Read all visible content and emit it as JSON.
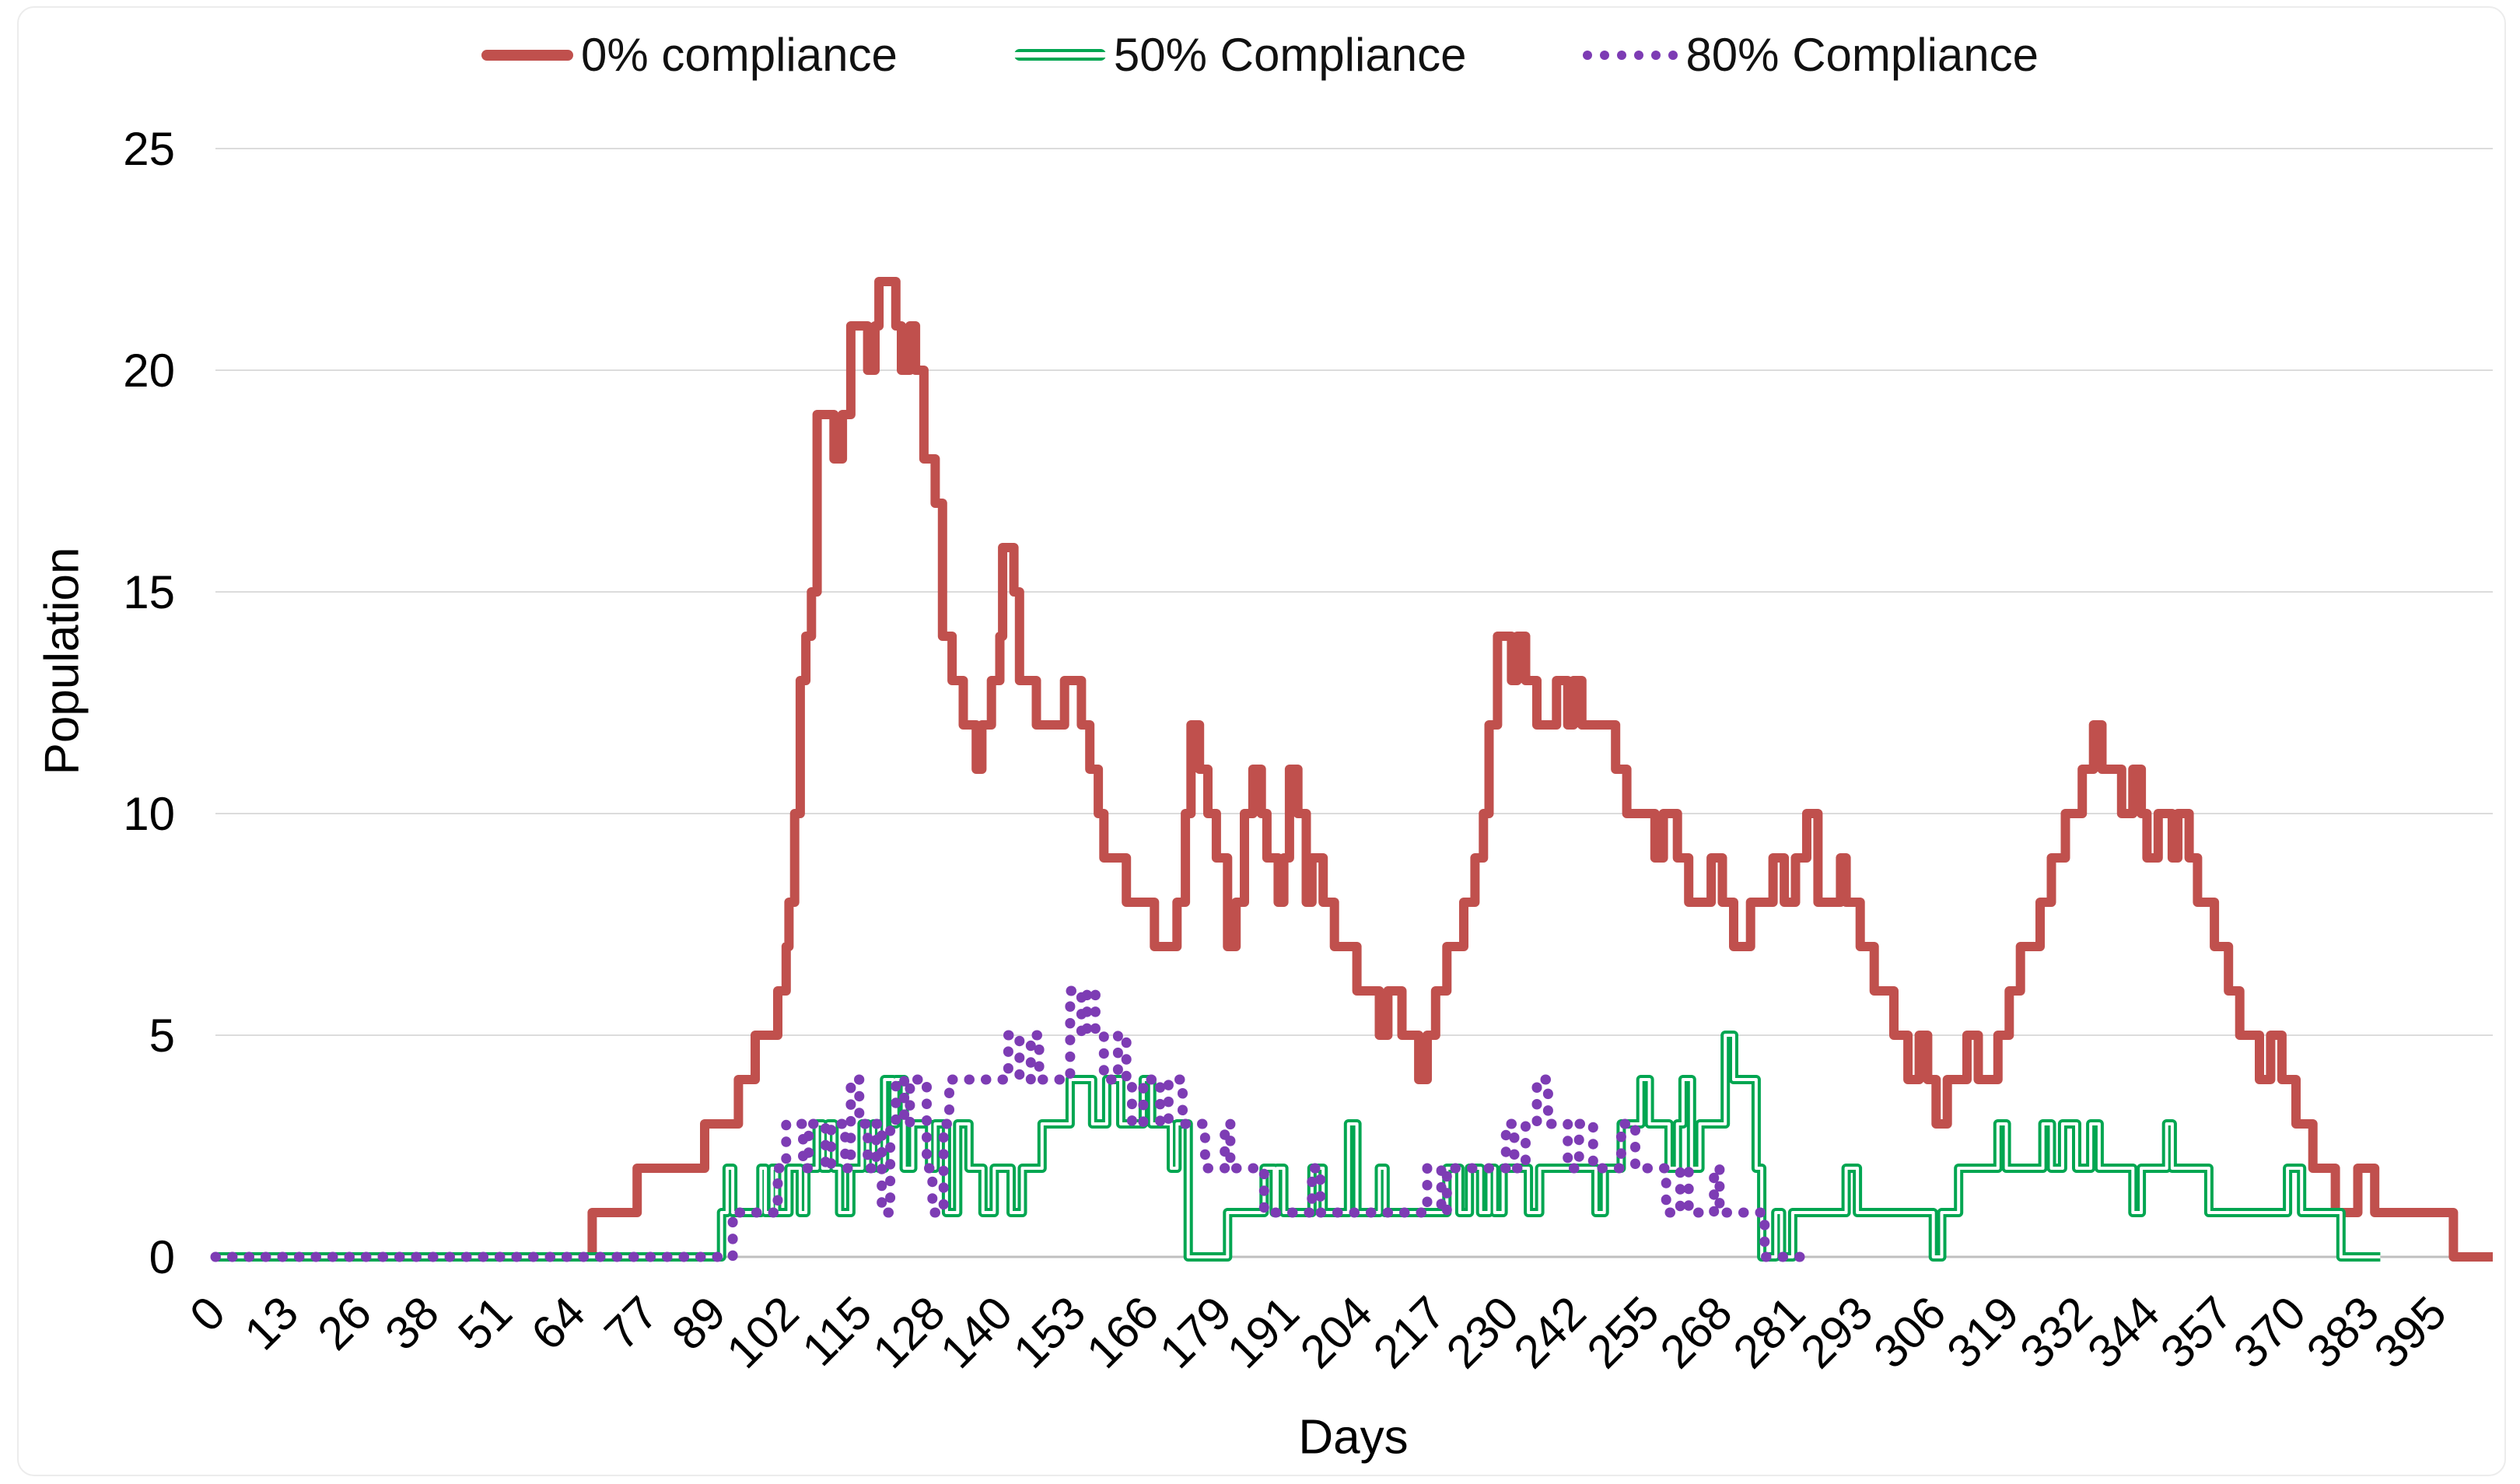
{
  "chart_data": {
    "type": "line",
    "subtype": "step",
    "title": "",
    "xlabel": "Days",
    "ylabel": "Population",
    "xlim": [
      0,
      405
    ],
    "ylim": [
      0,
      25
    ],
    "grid": "horizontal-gridlines",
    "legend_position": "top-center",
    "y_ticks": [
      0,
      5,
      10,
      15,
      20,
      25
    ],
    "x_ticks": [
      0,
      13,
      26,
      38,
      51,
      64,
      77,
      89,
      102,
      115,
      128,
      140,
      153,
      166,
      179,
      191,
      204,
      217,
      230,
      242,
      255,
      268,
      281,
      293,
      306,
      319,
      332,
      344,
      357,
      370,
      383,
      395
    ],
    "gridline_color": "#DCDCDC",
    "axis_line_color": "#BFBFBF",
    "series": [
      {
        "name": "0% compliance",
        "color": "#C0504D",
        "line_style": "solid",
        "points": [
          [
            0,
            0
          ],
          [
            67,
            1
          ],
          [
            75,
            2
          ],
          [
            87,
            3
          ],
          [
            93,
            4
          ],
          [
            96,
            5
          ],
          [
            100,
            6
          ],
          [
            101.5,
            7
          ],
          [
            102,
            8
          ],
          [
            103,
            10
          ],
          [
            104,
            13
          ],
          [
            105,
            14
          ],
          [
            106,
            15
          ],
          [
            107,
            19
          ],
          [
            110,
            18
          ],
          [
            111.5,
            19
          ],
          [
            113,
            21
          ],
          [
            116,
            20
          ],
          [
            117.3,
            21
          ],
          [
            118,
            22
          ],
          [
            121,
            21
          ],
          [
            122,
            20
          ],
          [
            123.5,
            21
          ],
          [
            124.5,
            20
          ],
          [
            126,
            18
          ],
          [
            128,
            17
          ],
          [
            129.3,
            14
          ],
          [
            131,
            13
          ],
          [
            133,
            12
          ],
          [
            135.3,
            11
          ],
          [
            136.3,
            12
          ],
          [
            138,
            13
          ],
          [
            139.5,
            14
          ],
          [
            140,
            16
          ],
          [
            142,
            15
          ],
          [
            143,
            13
          ],
          [
            146,
            12
          ],
          [
            151,
            13
          ],
          [
            154,
            12
          ],
          [
            155.5,
            11
          ],
          [
            157,
            10
          ],
          [
            158,
            9
          ],
          [
            162,
            8
          ],
          [
            167,
            7
          ],
          [
            171,
            8
          ],
          [
            172.5,
            10
          ],
          [
            173.5,
            12
          ],
          [
            175,
            11
          ],
          [
            176.5,
            10
          ],
          [
            178,
            9
          ],
          [
            180,
            7
          ],
          [
            181.5,
            8
          ],
          [
            183,
            10
          ],
          [
            184.5,
            11
          ],
          [
            186,
            10
          ],
          [
            187,
            9
          ],
          [
            189,
            8
          ],
          [
            190,
            9
          ],
          [
            191,
            11
          ],
          [
            192.5,
            10
          ],
          [
            194,
            8
          ],
          [
            195,
            9
          ],
          [
            197,
            8
          ],
          [
            199,
            7
          ],
          [
            203,
            6
          ],
          [
            207,
            5
          ],
          [
            208.5,
            6
          ],
          [
            211,
            5
          ],
          [
            214,
            4
          ],
          [
            215.5,
            5
          ],
          [
            217,
            6
          ],
          [
            219,
            7
          ],
          [
            222,
            8
          ],
          [
            224,
            9
          ],
          [
            225.5,
            10
          ],
          [
            226.5,
            12
          ],
          [
            228,
            14
          ],
          [
            230.5,
            13
          ],
          [
            231.5,
            14
          ],
          [
            233,
            13
          ],
          [
            235,
            12
          ],
          [
            238.5,
            13
          ],
          [
            240.5,
            12
          ],
          [
            241.5,
            13
          ],
          [
            243,
            12
          ],
          [
            249,
            11
          ],
          [
            251,
            10
          ],
          [
            256,
            9
          ],
          [
            257.5,
            10
          ],
          [
            260,
            9
          ],
          [
            262,
            8
          ],
          [
            266,
            9
          ],
          [
            268,
            8
          ],
          [
            270,
            7
          ],
          [
            273,
            8
          ],
          [
            277,
            9
          ],
          [
            279,
            8
          ],
          [
            281,
            9
          ],
          [
            283,
            10
          ],
          [
            285,
            8
          ],
          [
            289,
            9
          ],
          [
            290,
            8
          ],
          [
            292.5,
            7
          ],
          [
            295,
            6
          ],
          [
            298.5,
            5
          ],
          [
            301,
            4
          ],
          [
            303,
            5
          ],
          [
            304.5,
            4
          ],
          [
            306,
            3
          ],
          [
            308,
            4
          ],
          [
            311.5,
            5
          ],
          [
            313.5,
            4
          ],
          [
            317,
            5
          ],
          [
            319,
            6
          ],
          [
            321,
            7
          ],
          [
            324.5,
            8
          ],
          [
            326.5,
            9
          ],
          [
            329,
            10
          ],
          [
            332,
            11
          ],
          [
            334,
            12
          ],
          [
            335.5,
            11
          ],
          [
            339,
            10
          ],
          [
            341,
            11
          ],
          [
            342.5,
            10
          ],
          [
            343.5,
            9
          ],
          [
            345.5,
            10
          ],
          [
            348,
            9
          ],
          [
            349,
            10
          ],
          [
            351,
            9
          ],
          [
            352.5,
            8
          ],
          [
            355.5,
            7
          ],
          [
            358,
            6
          ],
          [
            360,
            5
          ],
          [
            363.5,
            4
          ],
          [
            365.5,
            5
          ],
          [
            367.5,
            4
          ],
          [
            370,
            3
          ],
          [
            373,
            2
          ],
          [
            377,
            1
          ],
          [
            381,
            2
          ],
          [
            384,
            1
          ],
          [
            398,
            0
          ],
          [
            405,
            0
          ]
        ]
      },
      {
        "name": "50% Compliance",
        "color": "#00A651",
        "line_style": "double",
        "points": [
          [
            0,
            0
          ],
          [
            90,
            1
          ],
          [
            91,
            2
          ],
          [
            92,
            1
          ],
          [
            97,
            2
          ],
          [
            97.8,
            1
          ],
          [
            99,
            2
          ],
          [
            99.8,
            1
          ],
          [
            102,
            2
          ],
          [
            104,
            1
          ],
          [
            105,
            2
          ],
          [
            107,
            3
          ],
          [
            108,
            2
          ],
          [
            109,
            3
          ],
          [
            110,
            2
          ],
          [
            111,
            1
          ],
          [
            113,
            2
          ],
          [
            115,
            3
          ],
          [
            116,
            2
          ],
          [
            117,
            3
          ],
          [
            118,
            2
          ],
          [
            119,
            4
          ],
          [
            120.5,
            3
          ],
          [
            121,
            4
          ],
          [
            122.5,
            2
          ],
          [
            124,
            3
          ],
          [
            127,
            2
          ],
          [
            128,
            3
          ],
          [
            130,
            1
          ],
          [
            132,
            3
          ],
          [
            134,
            2
          ],
          [
            136.5,
            1
          ],
          [
            138.5,
            2
          ],
          [
            141.5,
            1
          ],
          [
            143.5,
            2
          ],
          [
            147,
            3
          ],
          [
            152,
            4
          ],
          [
            156,
            3
          ],
          [
            158.5,
            4
          ],
          [
            161,
            3
          ],
          [
            165,
            4
          ],
          [
            166.5,
            3
          ],
          [
            170,
            2
          ],
          [
            171,
            3
          ],
          [
            173,
            0
          ],
          [
            180,
            1
          ],
          [
            186.5,
            2
          ],
          [
            188.3,
            1
          ],
          [
            188.8,
            2
          ],
          [
            190,
            1
          ],
          [
            195,
            2
          ],
          [
            197,
            1
          ],
          [
            201.5,
            3
          ],
          [
            203,
            1
          ],
          [
            207,
            2
          ],
          [
            208,
            1
          ],
          [
            219,
            2
          ],
          [
            221.3,
            1
          ],
          [
            223,
            2
          ],
          [
            225,
            1
          ],
          [
            226.5,
            2
          ],
          [
            227.5,
            1
          ],
          [
            229,
            2
          ],
          [
            233.5,
            1
          ],
          [
            235.5,
            2
          ],
          [
            245.5,
            1
          ],
          [
            247,
            2
          ],
          [
            250,
            3
          ],
          [
            253.5,
            4
          ],
          [
            255,
            3
          ],
          [
            258.5,
            2
          ],
          [
            260,
            3
          ],
          [
            261,
            4
          ],
          [
            262.5,
            2
          ],
          [
            264,
            3
          ],
          [
            268.5,
            5
          ],
          [
            270,
            4
          ],
          [
            274,
            2
          ],
          [
            275,
            0
          ],
          [
            277.5,
            1
          ],
          [
            278.5,
            0
          ],
          [
            280.5,
            1
          ],
          [
            290,
            2
          ],
          [
            292,
            1
          ],
          [
            305.5,
            0
          ],
          [
            307,
            1
          ],
          [
            310,
            2
          ],
          [
            317,
            3
          ],
          [
            318.5,
            2
          ],
          [
            325,
            3
          ],
          [
            326.5,
            2
          ],
          [
            328.5,
            3
          ],
          [
            331,
            2
          ],
          [
            333.5,
            3
          ],
          [
            335,
            2
          ],
          [
            341,
            1
          ],
          [
            342.5,
            2
          ],
          [
            347,
            3
          ],
          [
            348,
            2
          ],
          [
            354.5,
            1
          ],
          [
            368.5,
            2
          ],
          [
            371,
            1
          ],
          [
            378,
            0
          ],
          [
            385,
            0
          ]
        ]
      },
      {
        "name": "80% Compliance",
        "color": "#7D3CB4",
        "line_style": "dotted",
        "points": [
          [
            0,
            0
          ],
          [
            92,
            1
          ],
          [
            100,
            2
          ],
          [
            101.5,
            3
          ],
          [
            104.5,
            2
          ],
          [
            105.5,
            3
          ],
          [
            108.5,
            2
          ],
          [
            109.5,
            3
          ],
          [
            112,
            2
          ],
          [
            113,
            4
          ],
          [
            114.5,
            3
          ],
          [
            116,
            2
          ],
          [
            117.5,
            3
          ],
          [
            118.5,
            1
          ],
          [
            120,
            3
          ],
          [
            121,
            4
          ],
          [
            122.5,
            3
          ],
          [
            123.5,
            4
          ],
          [
            126.5,
            2
          ],
          [
            127.5,
            1
          ],
          [
            129.5,
            3
          ],
          [
            130.5,
            4
          ],
          [
            141,
            5
          ],
          [
            143,
            4
          ],
          [
            145,
            5
          ],
          [
            146.5,
            4
          ],
          [
            152,
            6
          ],
          [
            154,
            5
          ],
          [
            155,
            6
          ],
          [
            156.5,
            5
          ],
          [
            158,
            4
          ],
          [
            160.5,
            5
          ],
          [
            162,
            4
          ],
          [
            163,
            3
          ],
          [
            165,
            4
          ],
          [
            168,
            3
          ],
          [
            169.5,
            4
          ],
          [
            172,
            3
          ],
          [
            176,
            2
          ],
          [
            179.5,
            3
          ],
          [
            180.5,
            2
          ],
          [
            186.5,
            1
          ],
          [
            195,
            2
          ],
          [
            196.5,
            1
          ],
          [
            215.5,
            2
          ],
          [
            218,
            1
          ],
          [
            219,
            2
          ],
          [
            229.5,
            3
          ],
          [
            231,
            2
          ],
          [
            233,
            3
          ],
          [
            235,
            4
          ],
          [
            237,
            3
          ],
          [
            240.5,
            2
          ],
          [
            242.5,
            3
          ],
          [
            245,
            2
          ],
          [
            250,
            3
          ],
          [
            252.5,
            2
          ],
          [
            258,
            1
          ],
          [
            260.5,
            2
          ],
          [
            262,
            1
          ],
          [
            266.5,
            2
          ],
          [
            267.5,
            1
          ],
          [
            275.5,
            0
          ],
          [
            283,
            0
          ]
        ]
      }
    ]
  }
}
